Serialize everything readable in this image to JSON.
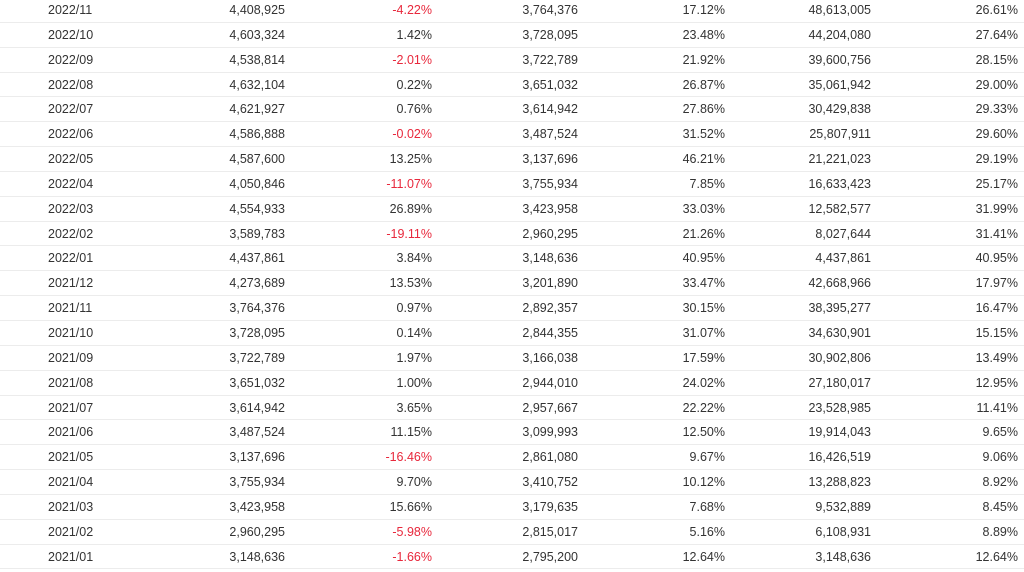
{
  "colors": {
    "text": "#333333",
    "negative": "#e8283c",
    "row_border": "#ececec"
  },
  "rows": [
    [
      "2022/11",
      "4,408,925",
      "-4.22%",
      "3,764,376",
      "17.12%",
      "48,613,005",
      "26.61%"
    ],
    [
      "2022/10",
      "4,603,324",
      "1.42%",
      "3,728,095",
      "23.48%",
      "44,204,080",
      "27.64%"
    ],
    [
      "2022/09",
      "4,538,814",
      "-2.01%",
      "3,722,789",
      "21.92%",
      "39,600,756",
      "28.15%"
    ],
    [
      "2022/08",
      "4,632,104",
      "0.22%",
      "3,651,032",
      "26.87%",
      "35,061,942",
      "29.00%"
    ],
    [
      "2022/07",
      "4,621,927",
      "0.76%",
      "3,614,942",
      "27.86%",
      "30,429,838",
      "29.33%"
    ],
    [
      "2022/06",
      "4,586,888",
      "-0.02%",
      "3,487,524",
      "31.52%",
      "25,807,911",
      "29.60%"
    ],
    [
      "2022/05",
      "4,587,600",
      "13.25%",
      "3,137,696",
      "46.21%",
      "21,221,023",
      "29.19%"
    ],
    [
      "2022/04",
      "4,050,846",
      "-11.07%",
      "3,755,934",
      "7.85%",
      "16,633,423",
      "25.17%"
    ],
    [
      "2022/03",
      "4,554,933",
      "26.89%",
      "3,423,958",
      "33.03%",
      "12,582,577",
      "31.99%"
    ],
    [
      "2022/02",
      "3,589,783",
      "-19.11%",
      "2,960,295",
      "21.26%",
      "8,027,644",
      "31.41%"
    ],
    [
      "2022/01",
      "4,437,861",
      "3.84%",
      "3,148,636",
      "40.95%",
      "4,437,861",
      "40.95%"
    ],
    [
      "2021/12",
      "4,273,689",
      "13.53%",
      "3,201,890",
      "33.47%",
      "42,668,966",
      "17.97%"
    ],
    [
      "2021/11",
      "3,764,376",
      "0.97%",
      "2,892,357",
      "30.15%",
      "38,395,277",
      "16.47%"
    ],
    [
      "2021/10",
      "3,728,095",
      "0.14%",
      "2,844,355",
      "31.07%",
      "34,630,901",
      "15.15%"
    ],
    [
      "2021/09",
      "3,722,789",
      "1.97%",
      "3,166,038",
      "17.59%",
      "30,902,806",
      "13.49%"
    ],
    [
      "2021/08",
      "3,651,032",
      "1.00%",
      "2,944,010",
      "24.02%",
      "27,180,017",
      "12.95%"
    ],
    [
      "2021/07",
      "3,614,942",
      "3.65%",
      "2,957,667",
      "22.22%",
      "23,528,985",
      "11.41%"
    ],
    [
      "2021/06",
      "3,487,524",
      "11.15%",
      "3,099,993",
      "12.50%",
      "19,914,043",
      "9.65%"
    ],
    [
      "2021/05",
      "3,137,696",
      "-16.46%",
      "2,861,080",
      "9.67%",
      "16,426,519",
      "9.06%"
    ],
    [
      "2021/04",
      "3,755,934",
      "9.70%",
      "3,410,752",
      "10.12%",
      "13,288,823",
      "8.92%"
    ],
    [
      "2021/03",
      "3,423,958",
      "15.66%",
      "3,179,635",
      "7.68%",
      "9,532,889",
      "8.45%"
    ],
    [
      "2021/02",
      "2,960,295",
      "-5.98%",
      "2,815,017",
      "5.16%",
      "6,108,931",
      "8.89%"
    ],
    [
      "2021/01",
      "3,148,636",
      "-1.66%",
      "2,795,200",
      "12.64%",
      "3,148,636",
      "12.64%"
    ]
  ]
}
